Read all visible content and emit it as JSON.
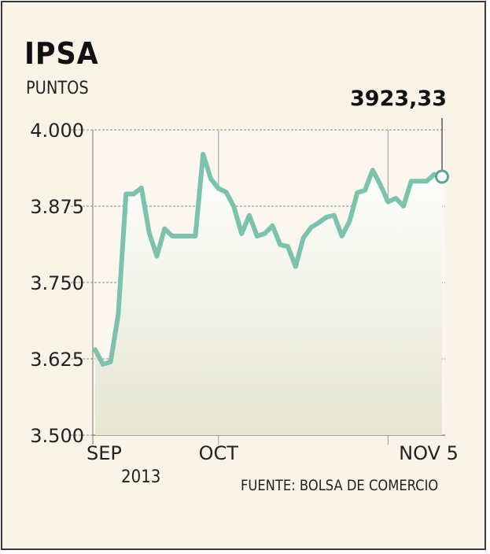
{
  "title": "IPSA",
  "subtitle": "PUNTOS",
  "source": "FUENTE: BOLSA DE COMERCIO",
  "year": "2013",
  "colors": {
    "line": "#7cc3ad",
    "background": "#faf3e7",
    "fill_top": "#ffffff",
    "fill_bottom": "#e5e6d2"
  },
  "chart_data": {
    "type": "line",
    "ylim": [
      3500,
      4000
    ],
    "y_ticks": [
      {
        "value": 3500,
        "label": "3.500"
      },
      {
        "value": 3625,
        "label": "3.625"
      },
      {
        "value": 3750,
        "label": "3.750"
      },
      {
        "value": 3875,
        "label": "3.875"
      },
      {
        "value": 4000,
        "label": "4.000"
      }
    ],
    "x_ticks": [
      {
        "index": 0,
        "label": "SEP"
      },
      {
        "index": 16,
        "label": "OCT"
      },
      {
        "index": 38,
        "label": "NOV 5"
      }
    ],
    "grid": true,
    "last_value_label": "3923,33",
    "values": [
      3640,
      3616,
      3620,
      3698,
      3895,
      3895,
      3905,
      3832,
      3793,
      3838,
      3826,
      3826,
      3826,
      3826,
      3960,
      3920,
      3904,
      3898,
      3874,
      3830,
      3860,
      3826,
      3830,
      3843,
      3812,
      3809,
      3776,
      3823,
      3840,
      3848,
      3857,
      3860,
      3826,
      3850,
      3897,
      3901,
      3934,
      3910,
      3882,
      3888,
      3875,
      3916,
      3916,
      3916,
      3927,
      3923.33
    ]
  }
}
